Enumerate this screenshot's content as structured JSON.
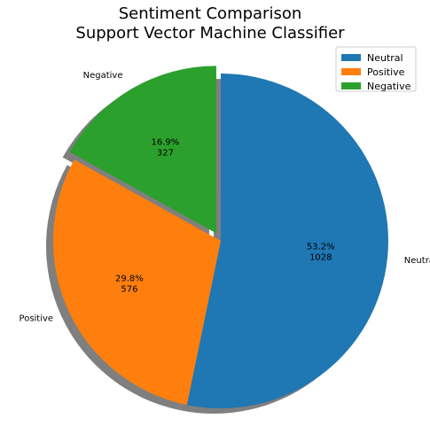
{
  "chart_data": {
    "type": "pie",
    "title_lines": [
      "Sentiment Comparison",
      "Support Vector Machine Classifier"
    ],
    "categories": [
      "Neutral",
      "Positive",
      "Negative"
    ],
    "values": [
      1028,
      576,
      327
    ],
    "percent_labels": [
      "53.2%",
      "29.8%",
      "16.9%"
    ],
    "count_labels": [
      "1028",
      "576",
      "327"
    ],
    "colors": [
      "#1f77b4",
      "#ff7f0e",
      "#2ca02c"
    ],
    "exploded": [
      false,
      false,
      true
    ],
    "start_angle_deg": 90,
    "direction": "clockwise",
    "shadow": true,
    "legend": {
      "placement": "top-right",
      "entries": [
        "Neutral",
        "Positive",
        "Negative"
      ]
    }
  }
}
